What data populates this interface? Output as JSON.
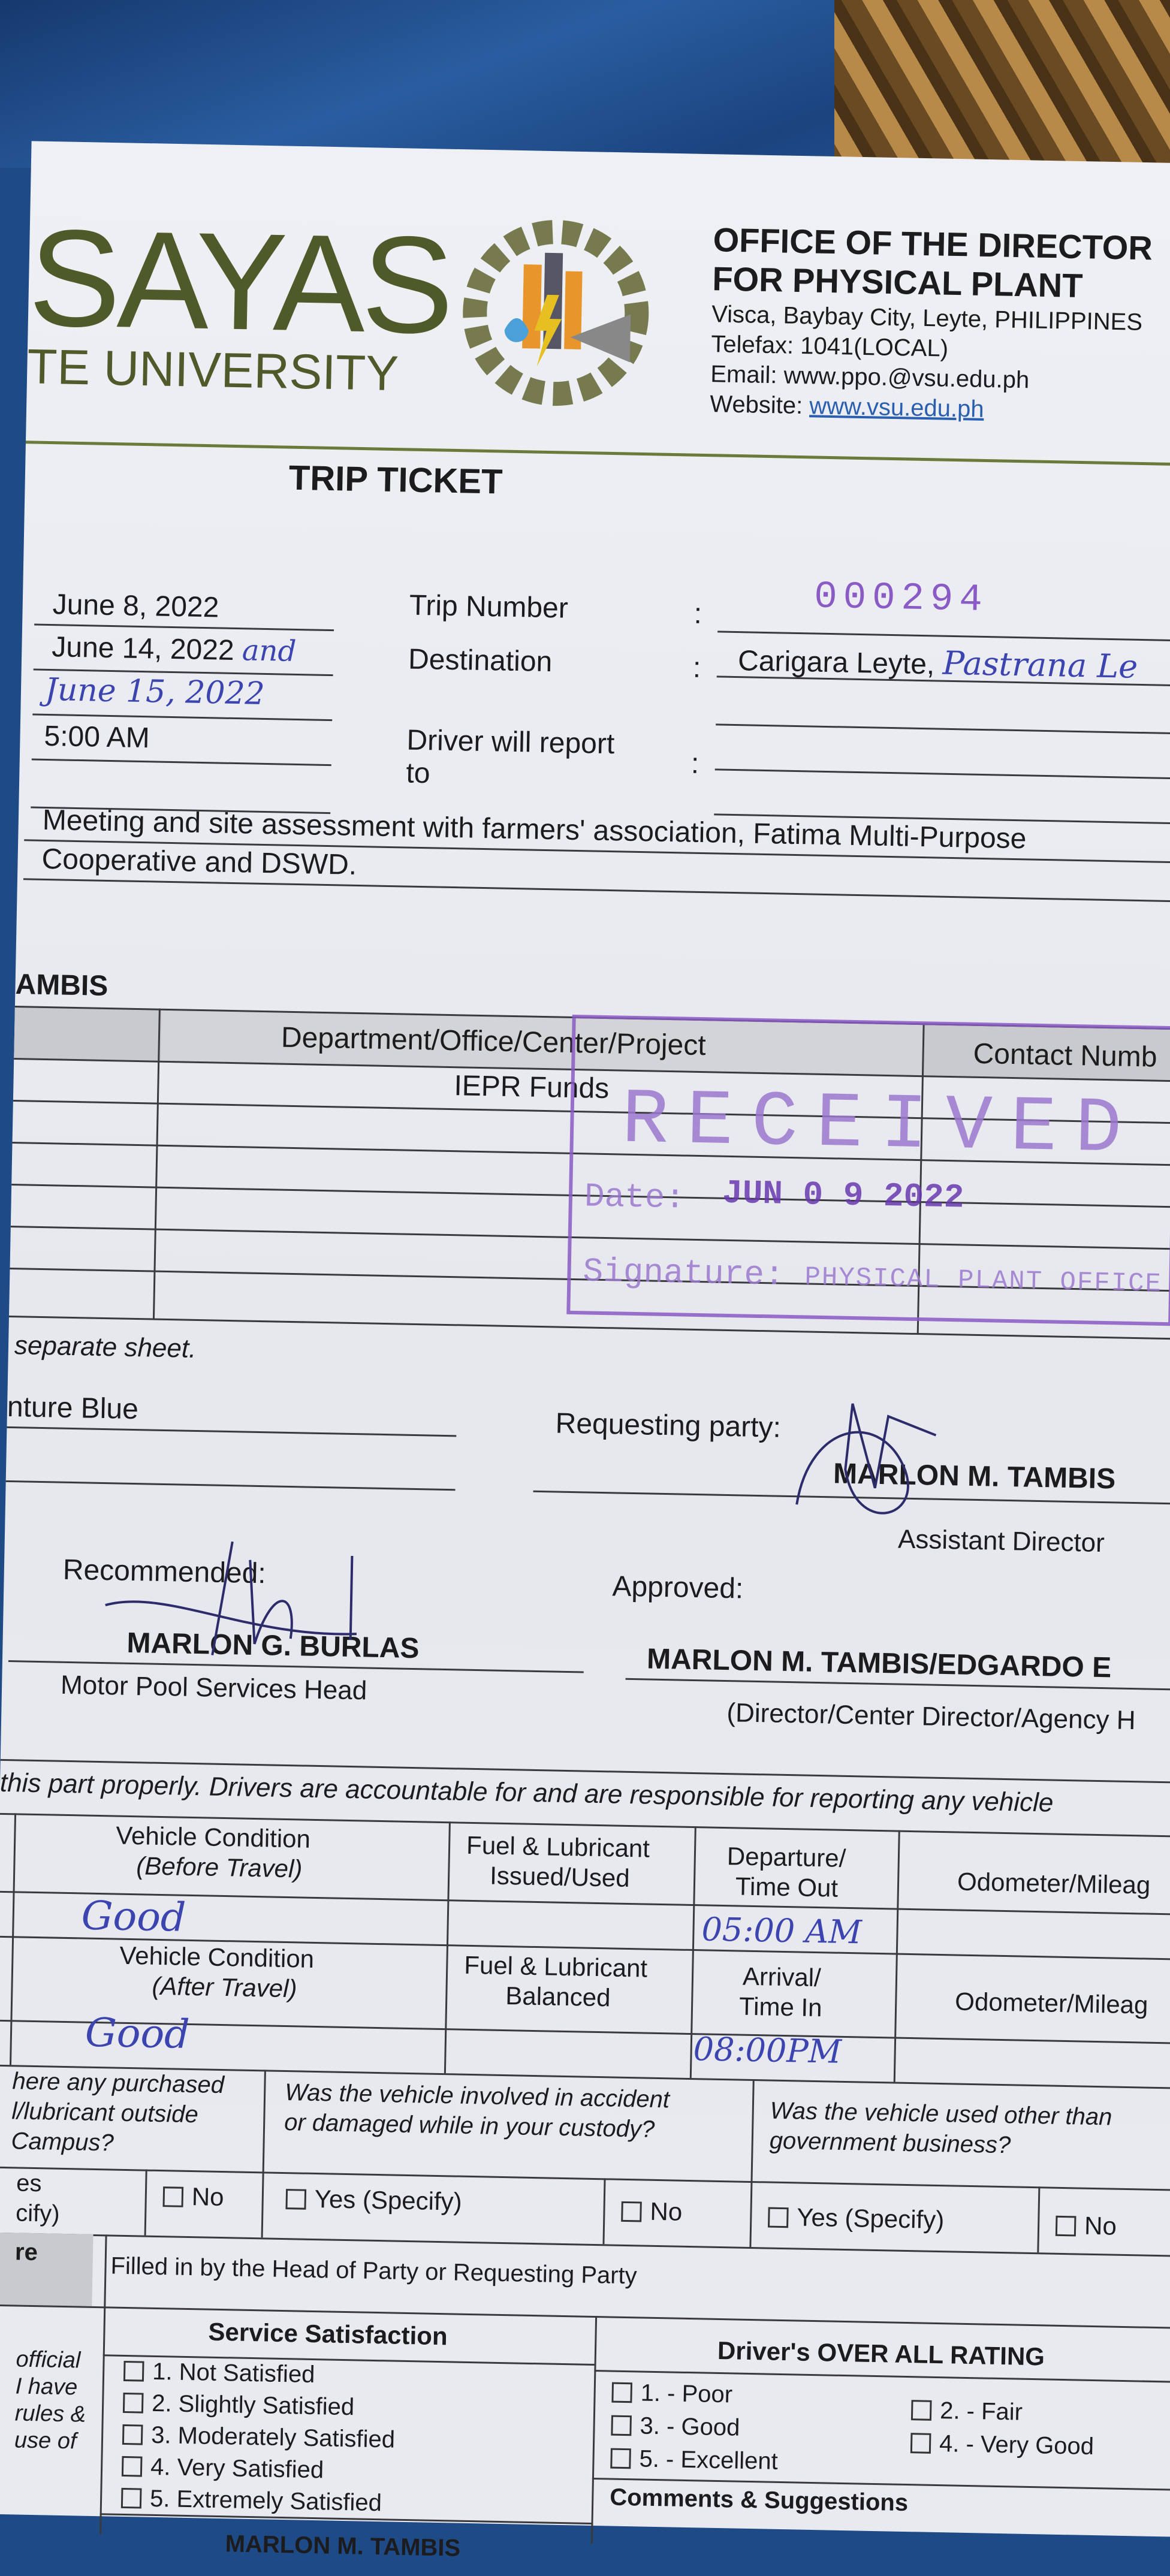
{
  "header": {
    "logo_main": "SAYAS",
    "logo_sub": "TE UNIVERSITY",
    "office_line1": "OFFICE OF THE DIRECTOR",
    "office_line2": "FOR PHYSICAL PLANT",
    "address": "Visca, Baybay City, Leyte, PHILIPPINES",
    "telefax": "Telefax: 1041(LOCAL)",
    "email": "Email: www.ppo.@vsu.edu.ph",
    "website_label": "Website:",
    "website_url": "www.vsu.edu.ph",
    "seal_text": "PHYSICAL PLANT OFFICE"
  },
  "title": "TRIP TICKET",
  "trip": {
    "date1": "June 8, 2022",
    "date2": "June 14, 2022",
    "date2_hand": "and",
    "date3_hand": "June 15, 2022",
    "time": "5:00 AM",
    "trip_number_label": "Trip Number",
    "trip_number": "000294",
    "destination_label": "Destination",
    "destination": "Carigara Leyte,",
    "destination_hand": "Pastrana Le",
    "driver_report_label": "Driver will report",
    "driver_report_label2": "to",
    "colon": ":",
    "purpose_line1": "Meeting and site assessment with farmers' association, Fatima Multi-Purpose",
    "purpose_line2": "Cooperative and DSWD."
  },
  "passengers": {
    "name_fragment": "AMBIS",
    "col_department": "Department/Office/Center/Project",
    "col_contact": "Contact Numb",
    "row1_department": "IEPR Funds",
    "note": "separate sheet."
  },
  "stamp": {
    "top": "PHYSICAL PLANT OFFICE",
    "received": "RECEIVED",
    "date_label": "Date:",
    "date": "JUN 0 9 2022",
    "signature_label": "Signature:"
  },
  "vehicle_fragment": "nture Blue",
  "signatories": {
    "requesting_label": "Requesting party:",
    "requesting_name": "MARLON M. TAMBIS",
    "requesting_title": "Assistant Director",
    "recommended_label": "Recommended:",
    "recommended_name": "MARLON G. BURLAS",
    "recommended_title": "Motor Pool Services Head",
    "approved_label": "Approved:",
    "approved_name": "MARLON M. TAMBIS/EDGARDO E",
    "approved_title": "(Director/Center Director/Agency H"
  },
  "driver_note": "this part properly.  Drivers are accountable for and are responsible for reporting any vehicle",
  "vehicle_table": {
    "cond_before": "Vehicle Condition",
    "cond_before2": "(Before Travel)",
    "fuel_issued": "Fuel & Lubricant",
    "fuel_issued2": "Issued/Used",
    "departure": "Departure/",
    "departure2": "Time Out",
    "odometer": "Odometer/Mileag",
    "cond_before_value": "Good",
    "departure_value": "05:00 AM",
    "cond_after": "Vehicle Condition",
    "cond_after2": "(After Travel)",
    "fuel_balanced": "Fuel & Lubricant",
    "fuel_balanced2": "Balanced",
    "arrival": "Arrival/",
    "arrival2": "Time In",
    "odometer2": "Odometer/Mileag",
    "cond_after_value": "Good",
    "arrival_value": "08:00PM"
  },
  "questions": {
    "q1a": "here any purchased",
    "q1b": "l/lubricant outside",
    "q1c": "Campus?",
    "q1_yes_a": "es",
    "q1_yes_b": "cify)",
    "q1_no": "No",
    "q2a": "Was the vehicle involved in accident",
    "q2b": "or damaged while in your custody?",
    "q2_yes": "Yes (Specify)",
    "q2_no": "No",
    "q3a": "Was the vehicle used other than",
    "q3b": "government business?",
    "q3_yes": "Yes (Specify)",
    "q3_no": "No"
  },
  "feedback": {
    "left_label": "re",
    "filled_by": "Filled in by the Head of Party or Requesting Party",
    "side_text": [
      "official",
      "I  have",
      "rules  &",
      "use   of"
    ],
    "service_title": "Service Satisfaction",
    "service_options": [
      "1.  Not Satisfied",
      "2.  Slightly Satisfied",
      "3.  Moderately Satisfied",
      "4.  Very Satisfied",
      "5.  Extremely Satisfied"
    ],
    "rating_title": "Driver's OVER ALL RATING",
    "rating_options": [
      "1. - Poor",
      "2. - Fair",
      "3. - Good",
      "4. - Very Good",
      "5. - Excellent"
    ],
    "comments_title": "Comments & Suggestions",
    "signer": "MARLON M. TAMBIS"
  },
  "colors": {
    "logo_green": "#4f5a2a",
    "handwriting_blue": "#3c44b0",
    "stamp_purple": "#8a5bc4",
    "link_blue": "#2a5fb0"
  }
}
